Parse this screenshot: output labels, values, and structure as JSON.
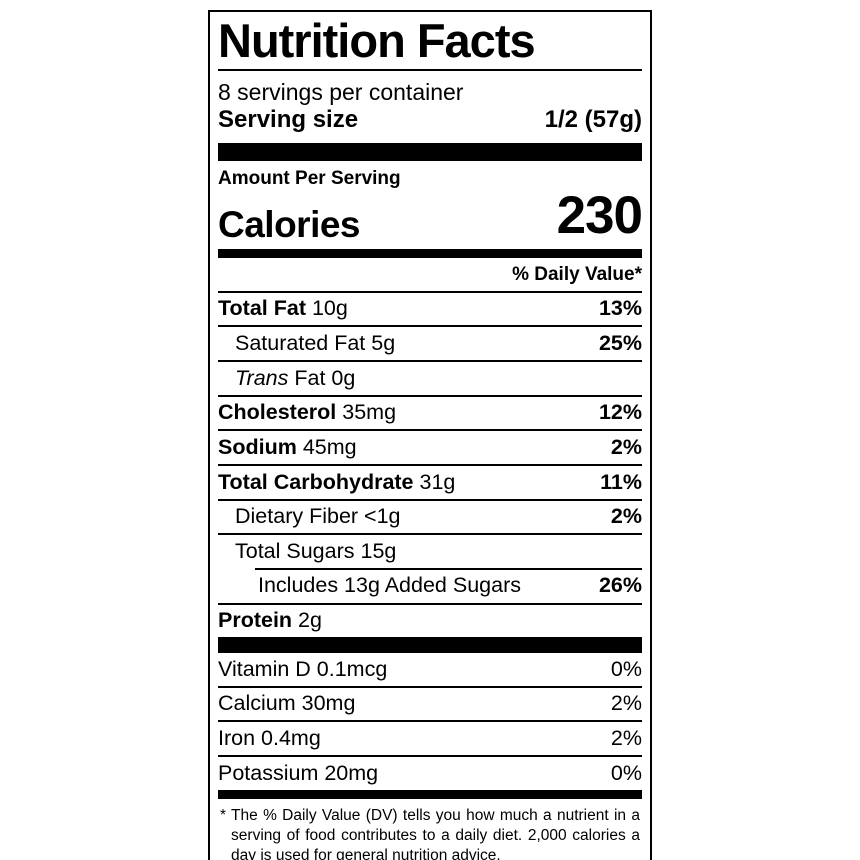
{
  "label": {
    "title": "Nutrition Facts",
    "servings_per_container": "8 servings per container",
    "serving_size": {
      "label": "Serving size",
      "value": "1/2 (57g)"
    },
    "amount_per_serving": "Amount Per Serving",
    "calories": {
      "label": "Calories",
      "value": "230"
    },
    "daily_value_header": "% Daily Value*",
    "nutrient_rows": [
      {
        "segments": [
          {
            "text": "Total Fat",
            "bold": true
          },
          {
            "text": " 10g"
          }
        ],
        "pct": "13%",
        "pct_bold": true,
        "indent": 0
      },
      {
        "segments": [
          {
            "text": "Saturated Fat 5g"
          }
        ],
        "pct": "25%",
        "pct_bold": true,
        "indent": 1
      },
      {
        "segments": [
          {
            "text": "Trans",
            "italic": true
          },
          {
            "text": " Fat 0g"
          }
        ],
        "pct": "",
        "indent": 1
      },
      {
        "segments": [
          {
            "text": "Cholesterol",
            "bold": true
          },
          {
            "text": " 35mg"
          }
        ],
        "pct": "12%",
        "pct_bold": true,
        "indent": 0
      },
      {
        "segments": [
          {
            "text": "Sodium",
            "bold": true
          },
          {
            "text": " 45mg"
          }
        ],
        "pct": "2%",
        "pct_bold": true,
        "indent": 0
      },
      {
        "segments": [
          {
            "text": "Total Carbohydrate",
            "bold": true
          },
          {
            "text": " 31g"
          }
        ],
        "pct": "11%",
        "pct_bold": true,
        "indent": 0
      },
      {
        "segments": [
          {
            "text": "Dietary Fiber <1g"
          }
        ],
        "pct": "2%",
        "pct_bold": true,
        "indent": 1
      },
      {
        "segments": [
          {
            "text": "Total Sugars 15g"
          }
        ],
        "pct": "",
        "indent": 1
      },
      {
        "segments": [
          {
            "text": "Includes 13g Added Sugars"
          }
        ],
        "pct": "26%",
        "pct_bold": true,
        "indent": 2,
        "rule_indent": true
      },
      {
        "segments": [
          {
            "text": "Protein",
            "bold": true
          },
          {
            "text": " 2g"
          }
        ],
        "pct": "",
        "indent": 0
      }
    ],
    "vitamin_rows": [
      {
        "segments": [
          {
            "text": "Vitamin D 0.1mcg"
          }
        ],
        "pct": "0%",
        "pct_bold": false,
        "indent": 0
      },
      {
        "segments": [
          {
            "text": "Calcium 30mg"
          }
        ],
        "pct": "2%",
        "pct_bold": false,
        "indent": 0
      },
      {
        "segments": [
          {
            "text": "Iron 0.4mg"
          }
        ],
        "pct": "2%",
        "pct_bold": false,
        "indent": 0
      },
      {
        "segments": [
          {
            "text": "Potassium 20mg"
          }
        ],
        "pct": "0%",
        "pct_bold": false,
        "indent": 0
      }
    ],
    "footnote": {
      "marker": "*",
      "text": "The % Daily Value (DV) tells you how much a nutrient in a serving of food contributes to a daily diet. 2,000 calories a day is used for general nutrition advice."
    },
    "colors": {
      "ink": "#000000",
      "background": "#ffffff"
    }
  }
}
